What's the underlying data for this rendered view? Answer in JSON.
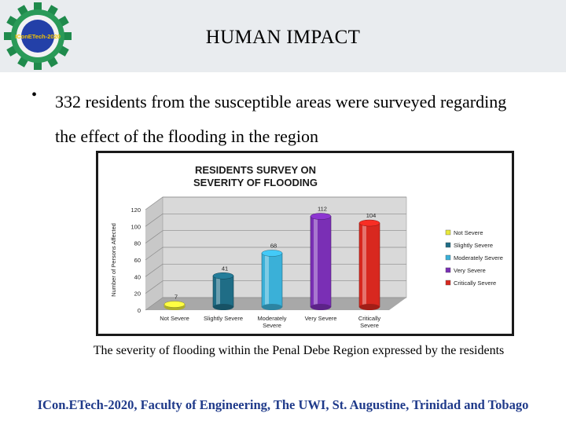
{
  "slide": {
    "title": "HUMAN IMPACT",
    "bullet": "332 residents from the susceptible areas were surveyed regarding the effect of the flooding in the region",
    "caption": "The severity of flooding within the Penal Debe Region expressed by the residents",
    "footer": "ICon.ETech-2020, Faculty of Engineering, The UWI, St. Augustine, Trinidad and Tobago"
  },
  "logo": {
    "text": "IConETech-2020",
    "icon": "gear-logo-icon"
  },
  "colors": {
    "header_band": "#e9ecef",
    "footer_text": "#1f3a8a",
    "bullet": "#000000"
  },
  "chart_data": {
    "type": "bar",
    "title": "RESIDENTS SURVEY ON SEVERITY OF FLOODING",
    "ylabel": "Number of Persons Affected",
    "xlabel": "",
    "categories": [
      "Not Severe",
      "Slightly Severe",
      "Moderately Severe",
      "Very Severe",
      "Critically Severe"
    ],
    "values": [
      7,
      41,
      68,
      112,
      104
    ],
    "colors": [
      "#e8e83a",
      "#1f6d86",
      "#3ab0d8",
      "#7a2fb5",
      "#d8281f"
    ],
    "ylim": [
      0,
      120
    ],
    "yticks": [
      0,
      20,
      40,
      60,
      80,
      100,
      120
    ],
    "legend": [
      "Not Severe",
      "Slightly Severe",
      "Moderately Severe",
      "Very Severe",
      "Critically Severe"
    ],
    "legend_position": "right",
    "grid": true
  }
}
